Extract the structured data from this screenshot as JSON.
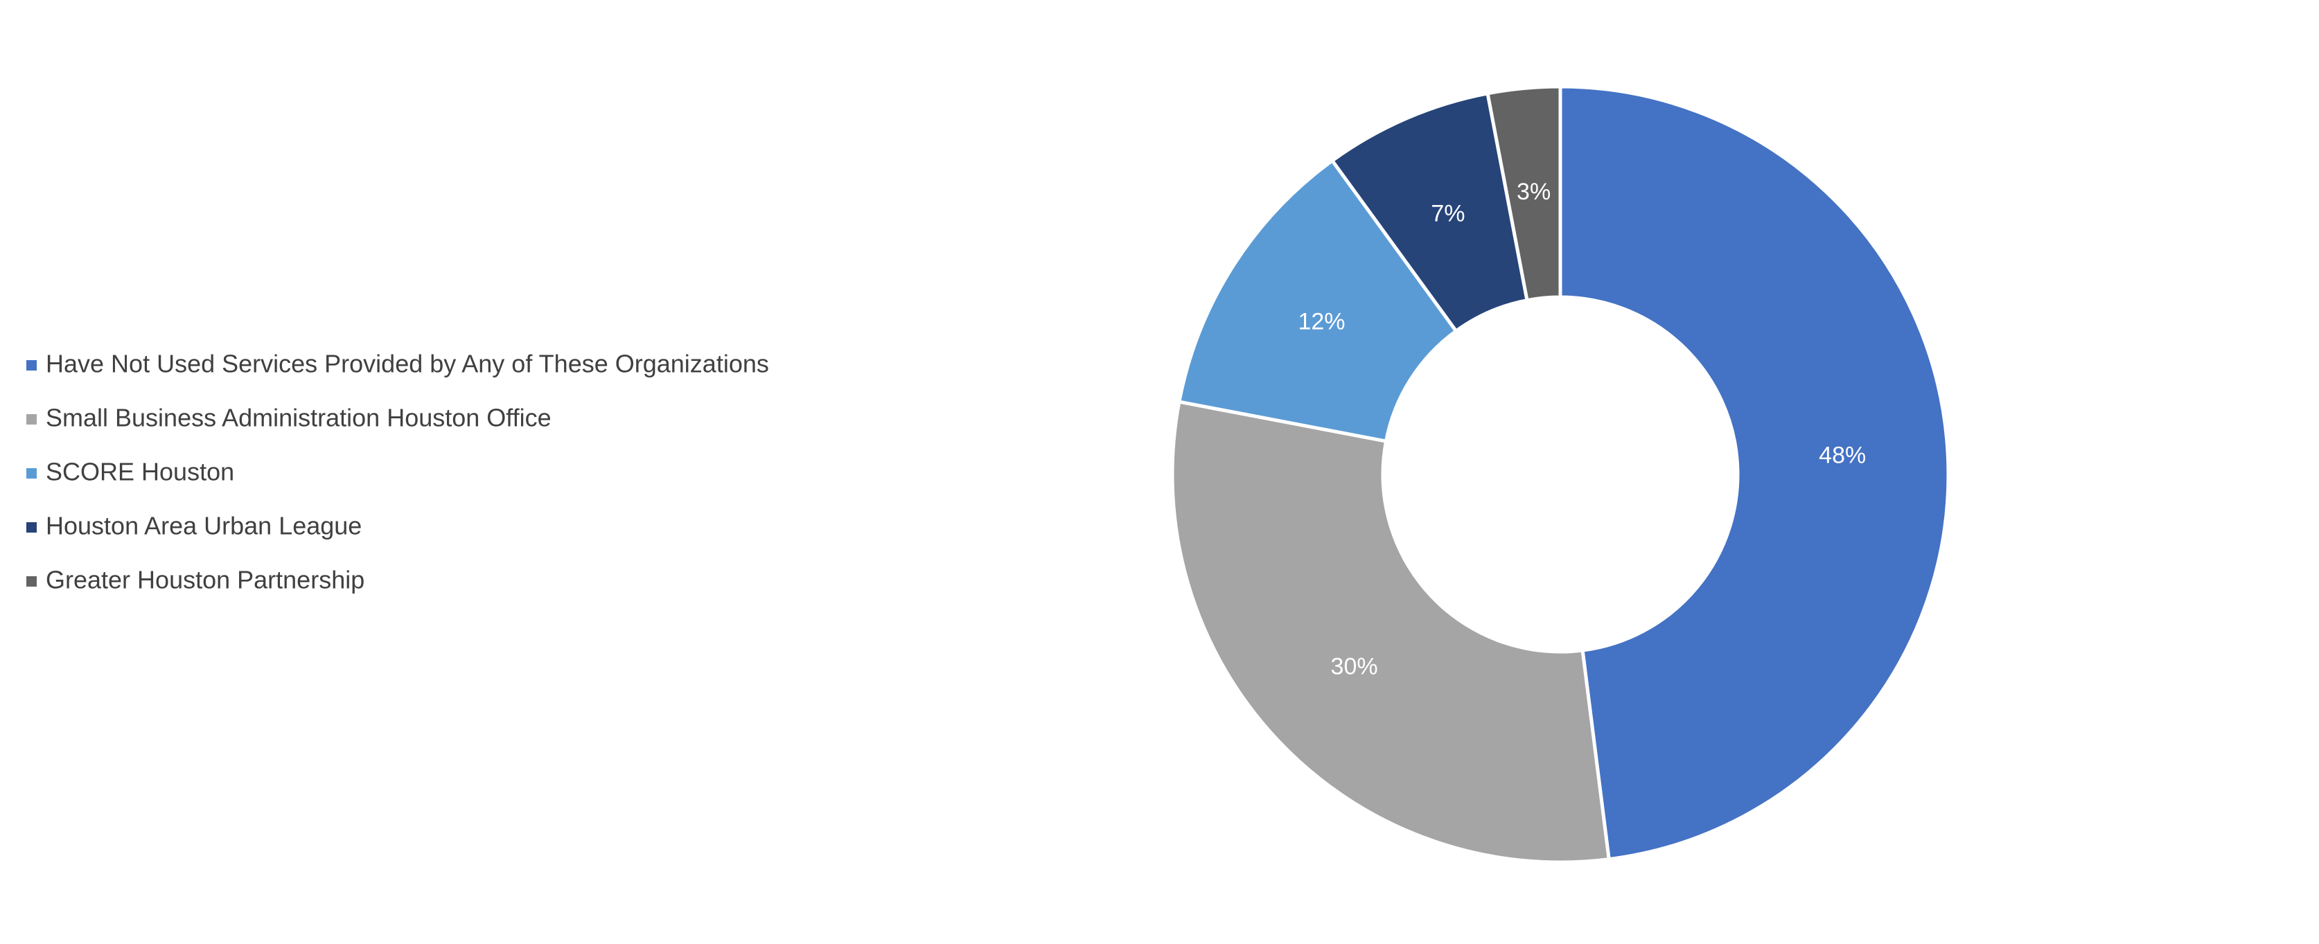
{
  "chart_data": {
    "type": "donut",
    "categories": [
      "Have Not Used Services Provided by Any of These Organizations",
      "Small Business Administration Houston Office",
      "SCORE Houston",
      "Houston Area Urban League",
      "Greater Houston Partnership"
    ],
    "values": [
      48,
      30,
      12,
      7,
      3
    ],
    "value_labels": [
      "48%",
      "30%",
      "12%",
      "7%",
      "3%"
    ],
    "colors": [
      "#4472c4",
      "#a5a5a5",
      "#5b9bd5",
      "#264478",
      "#636363"
    ],
    "legend": "left"
  }
}
